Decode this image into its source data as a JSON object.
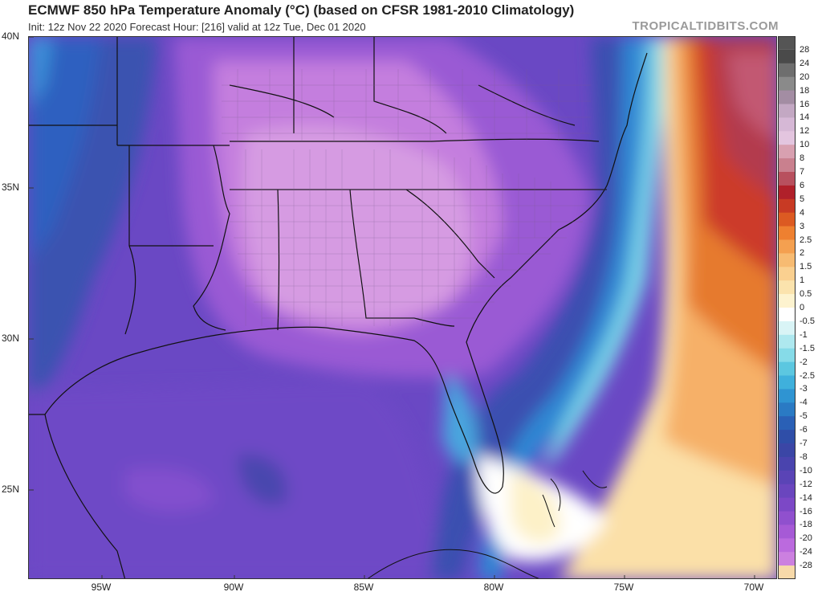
{
  "header": {
    "title": "ECMWF 850 hPa Temperature Anomaly (°C) (based on CFSR 1981-2010 Climatology)",
    "subtitle": "Init: 12z Nov 22 2020   Forecast Hour: [216]   valid at 12z Tue, Dec 01 2020",
    "brand": "TROPICALTIDBITS.COM"
  },
  "axes": {
    "lat_labels": [
      "40N",
      "35N",
      "30N",
      "25N"
    ],
    "lon_labels": [
      "95W",
      "90W",
      "85W",
      "80W",
      "75W",
      "70W"
    ]
  },
  "colorbar": {
    "labels": [
      "28",
      "24",
      "20",
      "18",
      "16",
      "14",
      "12",
      "10",
      "8",
      "7",
      "6",
      "5",
      "4",
      "3",
      "2.5",
      "2",
      "1.5",
      "1",
      "0.5",
      "0",
      "-0.5",
      "-1",
      "-1.5",
      "-2",
      "-2.5",
      "-3",
      "-4",
      "-5",
      "-6",
      "-7",
      "-8",
      "-10",
      "-12",
      "-14",
      "-16",
      "-18",
      "-20",
      "-24",
      "-28"
    ],
    "colors": [
      "#4a4a4a",
      "#6e6e6e",
      "#8a8a8a",
      "#a38da3",
      "#c3a8c3",
      "#d6b8d6",
      "#e3c5df",
      "#d8a0b0",
      "#c9808e",
      "#b8505e",
      "#b0202a",
      "#c83a24",
      "#dc5a22",
      "#ee8030",
      "#f4a050",
      "#f7bb72",
      "#fad090",
      "#fbe3ad",
      "#fdf3cf",
      "#ffffff",
      "#d9f4f6",
      "#aee8ef",
      "#86dbe8",
      "#5cc7e0",
      "#3fb0dc",
      "#2f94d2",
      "#2a7ac4",
      "#2a60b6",
      "#2f4ea8",
      "#3b46a6",
      "#4a44ae",
      "#5a44b6",
      "#6a46be",
      "#7c48c6",
      "#9050ce",
      "#a65ad6",
      "#bb6ade",
      "#cc80e0",
      "#dc98e6"
    ],
    "min_color": "#f7d9a9"
  }
}
